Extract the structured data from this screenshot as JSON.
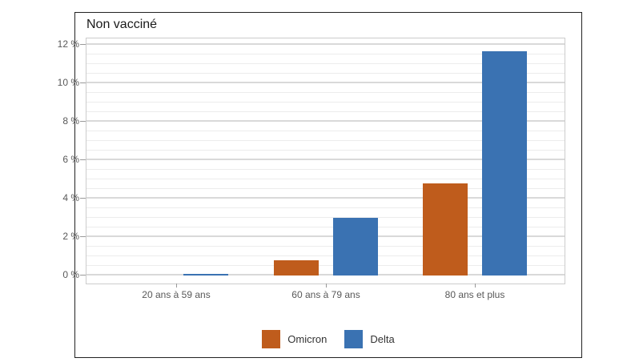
{
  "chart_data": {
    "type": "bar",
    "title": "Non vacciné",
    "categories": [
      "20 ans à 59 ans",
      "60 ans à 79 ans",
      "80 ans et plus"
    ],
    "series": [
      {
        "name": "Omicron",
        "color": "#bf5c1c",
        "values": [
          0,
          0.8,
          4.8
        ]
      },
      {
        "name": "Delta",
        "color": "#3a72b2",
        "values": [
          0.1,
          3.0,
          11.7
        ]
      }
    ],
    "unit": "%",
    "xlabel": "",
    "ylabel": "",
    "ylim": [
      0,
      12.3
    ],
    "y_ticks": [
      0,
      2,
      4,
      6,
      8,
      10,
      12
    ],
    "y_tick_labels": [
      "0 %",
      "2 %",
      "4 %",
      "6 %",
      "8 %",
      "10 %",
      "12 %"
    ],
    "y_minor_step": 0.5,
    "grid": "on",
    "legend_position": "bottom"
  },
  "colors": {
    "omicron": "#bf5c1c",
    "delta": "#3a72b2",
    "grid_major": "#d9d9d9",
    "grid_minor": "#ececec",
    "plot_border": "#cccccc",
    "frame_border": "#222222",
    "axis_text": "#595959",
    "legend_text": "#333333",
    "background": "#ffffff"
  }
}
